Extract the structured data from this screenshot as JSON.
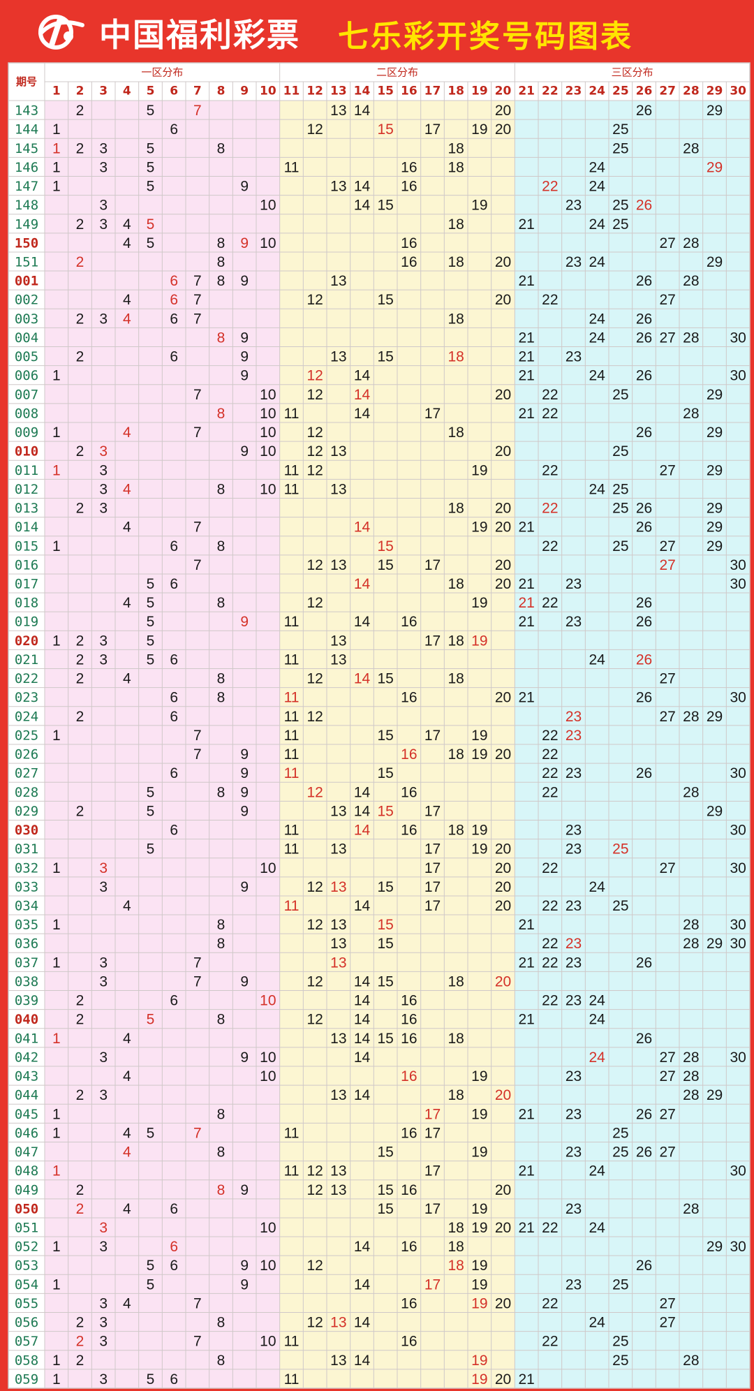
{
  "header": {
    "brand": "中国福利彩票",
    "title": "七乐彩开奖号码图表"
  },
  "chart_data": {
    "type": "table",
    "corner_label": "期号",
    "zones": [
      {
        "name": "一区分布",
        "from": 1,
        "to": 10
      },
      {
        "name": "二区分布",
        "from": 11,
        "to": 20
      },
      {
        "name": "三区分布",
        "from": 21,
        "to": 30
      }
    ],
    "columns": [
      "1",
      "2",
      "3",
      "4",
      "5",
      "6",
      "7",
      "8",
      "9",
      "10",
      "11",
      "12",
      "13",
      "14",
      "15",
      "16",
      "17",
      "18",
      "19",
      "20",
      "21",
      "22",
      "23",
      "24",
      "25",
      "26",
      "27",
      "28",
      "29",
      "30"
    ],
    "colors": {
      "zone1_bg": "#fbe3f3",
      "zone2_bg": "#fcf6d2",
      "zone3_bg": "#d8f6f8",
      "period_text": "#1d7a53",
      "period_highlight": "#c0271c",
      "number": "#1a1a1a",
      "special_number": "#d43128",
      "grid": "#cfc8c8",
      "frame": "#e8352b"
    },
    "rows": [
      {
        "period": "143",
        "numbers": [
          2,
          5,
          7,
          13,
          14,
          20,
          26,
          29
        ],
        "special": 7
      },
      {
        "period": "144",
        "numbers": [
          1,
          6,
          12,
          15,
          17,
          19,
          20,
          25
        ],
        "special": 15
      },
      {
        "period": "145",
        "numbers": [
          1,
          2,
          3,
          5,
          8,
          18,
          25,
          28
        ],
        "special": 1
      },
      {
        "period": "146",
        "numbers": [
          1,
          3,
          5,
          11,
          16,
          18,
          24,
          29
        ],
        "special": 29
      },
      {
        "period": "147",
        "numbers": [
          1,
          5,
          9,
          13,
          14,
          16,
          22,
          24
        ],
        "special": 22
      },
      {
        "period": "148",
        "numbers": [
          3,
          10,
          14,
          15,
          19,
          23,
          25,
          26
        ],
        "special": 26
      },
      {
        "period": "149",
        "numbers": [
          2,
          3,
          4,
          5,
          18,
          21,
          24,
          25
        ],
        "special": 5
      },
      {
        "period": "150",
        "numbers": [
          4,
          5,
          8,
          9,
          10,
          16,
          27,
          28
        ],
        "special": 9,
        "highlight": true
      },
      {
        "period": "151",
        "numbers": [
          2,
          8,
          16,
          18,
          20,
          23,
          24,
          29
        ],
        "special": 2
      },
      {
        "period": "001",
        "numbers": [
          6,
          7,
          8,
          9,
          13,
          21,
          26,
          28
        ],
        "special": 6,
        "highlight": true
      },
      {
        "period": "002",
        "numbers": [
          4,
          6,
          7,
          12,
          15,
          20,
          22,
          27
        ],
        "special": 6
      },
      {
        "period": "003",
        "numbers": [
          2,
          3,
          4,
          6,
          7,
          18,
          24,
          26
        ],
        "special": 4
      },
      {
        "period": "004",
        "numbers": [
          8,
          9,
          21,
          24,
          26,
          27,
          28,
          30
        ],
        "special": 8
      },
      {
        "period": "005",
        "numbers": [
          2,
          6,
          9,
          13,
          15,
          18,
          21,
          23
        ],
        "special": 18
      },
      {
        "period": "006",
        "numbers": [
          1,
          9,
          12,
          14,
          21,
          24,
          26,
          30
        ],
        "special": 12
      },
      {
        "period": "007",
        "numbers": [
          7,
          10,
          12,
          14,
          20,
          22,
          25,
          29
        ],
        "special": 14
      },
      {
        "period": "008",
        "numbers": [
          8,
          10,
          11,
          14,
          17,
          21,
          22,
          28
        ],
        "special": 8
      },
      {
        "period": "009",
        "numbers": [
          1,
          4,
          7,
          10,
          12,
          18,
          26,
          29
        ],
        "special": 4
      },
      {
        "period": "010",
        "numbers": [
          2,
          3,
          9,
          10,
          12,
          13,
          20,
          25
        ],
        "special": 3,
        "highlight": true
      },
      {
        "period": "011",
        "numbers": [
          1,
          3,
          11,
          12,
          19,
          22,
          27,
          29
        ],
        "special": 1
      },
      {
        "period": "012",
        "numbers": [
          3,
          4,
          8,
          10,
          11,
          13,
          24,
          25
        ],
        "special": 4
      },
      {
        "period": "013",
        "numbers": [
          2,
          3,
          18,
          20,
          22,
          25,
          26,
          29
        ],
        "special": 22
      },
      {
        "period": "014",
        "numbers": [
          4,
          7,
          14,
          19,
          20,
          21,
          26,
          29
        ],
        "special": 14
      },
      {
        "period": "015",
        "numbers": [
          1,
          6,
          8,
          15,
          22,
          25,
          27,
          29
        ],
        "special": 15
      },
      {
        "period": "016",
        "numbers": [
          7,
          12,
          13,
          15,
          17,
          20,
          27,
          30
        ],
        "special": 27
      },
      {
        "period": "017",
        "numbers": [
          5,
          6,
          14,
          18,
          20,
          21,
          23,
          30
        ],
        "special": 14
      },
      {
        "period": "018",
        "numbers": [
          4,
          5,
          8,
          12,
          19,
          21,
          22,
          26
        ],
        "special": 21
      },
      {
        "period": "019",
        "numbers": [
          5,
          9,
          11,
          14,
          16,
          21,
          23,
          26
        ],
        "special": 9
      },
      {
        "period": "020",
        "numbers": [
          1,
          2,
          3,
          5,
          13,
          17,
          18,
          19
        ],
        "special": 19,
        "highlight": true
      },
      {
        "period": "021",
        "numbers": [
          2,
          3,
          5,
          6,
          11,
          13,
          24,
          26
        ],
        "special": 26
      },
      {
        "period": "022",
        "numbers": [
          2,
          4,
          8,
          12,
          14,
          15,
          18,
          27
        ],
        "special": 14
      },
      {
        "period": "023",
        "numbers": [
          6,
          8,
          11,
          16,
          20,
          21,
          26,
          30
        ],
        "special": 11
      },
      {
        "period": "024",
        "numbers": [
          2,
          6,
          11,
          12,
          23,
          27,
          28,
          29
        ],
        "special": 23
      },
      {
        "period": "025",
        "numbers": [
          1,
          7,
          11,
          15,
          17,
          19,
          22,
          23
        ],
        "special": 23
      },
      {
        "period": "026",
        "numbers": [
          7,
          9,
          11,
          16,
          18,
          19,
          20,
          22
        ],
        "special": 16
      },
      {
        "period": "027",
        "numbers": [
          6,
          9,
          11,
          15,
          22,
          23,
          26,
          30
        ],
        "special": 11
      },
      {
        "period": "028",
        "numbers": [
          5,
          8,
          9,
          12,
          14,
          16,
          22,
          28
        ],
        "special": 12
      },
      {
        "period": "029",
        "numbers": [
          2,
          5,
          9,
          13,
          14,
          15,
          17,
          29
        ],
        "special": 15
      },
      {
        "period": "030",
        "numbers": [
          6,
          11,
          14,
          16,
          18,
          19,
          23,
          30
        ],
        "special": 14,
        "highlight": true
      },
      {
        "period": "031",
        "numbers": [
          5,
          11,
          13,
          17,
          19,
          20,
          23,
          25
        ],
        "special": 25
      },
      {
        "period": "032",
        "numbers": [
          1,
          3,
          10,
          17,
          20,
          22,
          27,
          30
        ],
        "special": 3
      },
      {
        "period": "033",
        "numbers": [
          3,
          9,
          12,
          13,
          15,
          17,
          20,
          24
        ],
        "special": 13
      },
      {
        "period": "034",
        "numbers": [
          4,
          11,
          14,
          17,
          20,
          22,
          23,
          25
        ],
        "special": 11
      },
      {
        "period": "035",
        "numbers": [
          1,
          8,
          12,
          13,
          15,
          21,
          28,
          30
        ],
        "special": 15
      },
      {
        "period": "036",
        "numbers": [
          8,
          13,
          15,
          22,
          23,
          28,
          29,
          30
        ],
        "special": 23
      },
      {
        "period": "037",
        "numbers": [
          1,
          3,
          7,
          13,
          21,
          22,
          23,
          26
        ],
        "special": 13
      },
      {
        "period": "038",
        "numbers": [
          3,
          7,
          9,
          12,
          14,
          15,
          18,
          20
        ],
        "special": 20
      },
      {
        "period": "039",
        "numbers": [
          2,
          6,
          10,
          14,
          16,
          22,
          23,
          24
        ],
        "special": 10
      },
      {
        "period": "040",
        "numbers": [
          2,
          5,
          8,
          12,
          14,
          16,
          21,
          24
        ],
        "special": 5,
        "highlight": true
      },
      {
        "period": "041",
        "numbers": [
          1,
          4,
          13,
          14,
          15,
          16,
          18,
          26
        ],
        "special": 1
      },
      {
        "period": "042",
        "numbers": [
          3,
          9,
          10,
          14,
          24,
          27,
          28,
          30
        ],
        "special": 24
      },
      {
        "period": "043",
        "numbers": [
          4,
          10,
          16,
          19,
          23,
          27,
          28
        ],
        "special": 16
      },
      {
        "period": "044",
        "numbers": [
          2,
          3,
          13,
          14,
          18,
          20,
          28,
          29
        ],
        "special": 20
      },
      {
        "period": "045",
        "numbers": [
          1,
          8,
          17,
          19,
          21,
          23,
          26,
          27
        ],
        "special": 17
      },
      {
        "period": "046",
        "numbers": [
          1,
          4,
          5,
          7,
          11,
          16,
          17,
          25
        ],
        "special": 7
      },
      {
        "period": "047",
        "numbers": [
          4,
          8,
          15,
          19,
          23,
          25,
          26,
          27
        ],
        "special": 4
      },
      {
        "period": "048",
        "numbers": [
          1,
          11,
          12,
          13,
          17,
          21,
          24,
          30
        ],
        "special": 1
      },
      {
        "period": "049",
        "numbers": [
          2,
          8,
          9,
          12,
          13,
          15,
          16,
          20
        ],
        "special": 8
      },
      {
        "period": "050",
        "numbers": [
          2,
          4,
          6,
          15,
          17,
          19,
          23,
          28
        ],
        "special": 2,
        "highlight": true
      },
      {
        "period": "051",
        "numbers": [
          3,
          10,
          18,
          19,
          20,
          21,
          22,
          24
        ],
        "special": 3
      },
      {
        "period": "052",
        "numbers": [
          1,
          3,
          6,
          14,
          16,
          18,
          29,
          30
        ],
        "special": 6
      },
      {
        "period": "053",
        "numbers": [
          5,
          6,
          9,
          10,
          12,
          18,
          19,
          26
        ],
        "special": 18
      },
      {
        "period": "054",
        "numbers": [
          1,
          5,
          9,
          14,
          17,
          19,
          23,
          25
        ],
        "special": 17
      },
      {
        "period": "055",
        "numbers": [
          3,
          4,
          7,
          16,
          19,
          20,
          22,
          27
        ],
        "special": 19
      },
      {
        "period": "056",
        "numbers": [
          2,
          3,
          8,
          12,
          13,
          14,
          24,
          27
        ],
        "special": 13
      },
      {
        "period": "057",
        "numbers": [
          2,
          3,
          7,
          10,
          11,
          16,
          22,
          25
        ],
        "special": 2
      },
      {
        "period": "058",
        "numbers": [
          1,
          2,
          8,
          13,
          14,
          19,
          25,
          28
        ],
        "special": 19
      },
      {
        "period": "059",
        "numbers": [
          1,
          3,
          5,
          6,
          11,
          19,
          20,
          21
        ],
        "special": 19
      }
    ]
  }
}
